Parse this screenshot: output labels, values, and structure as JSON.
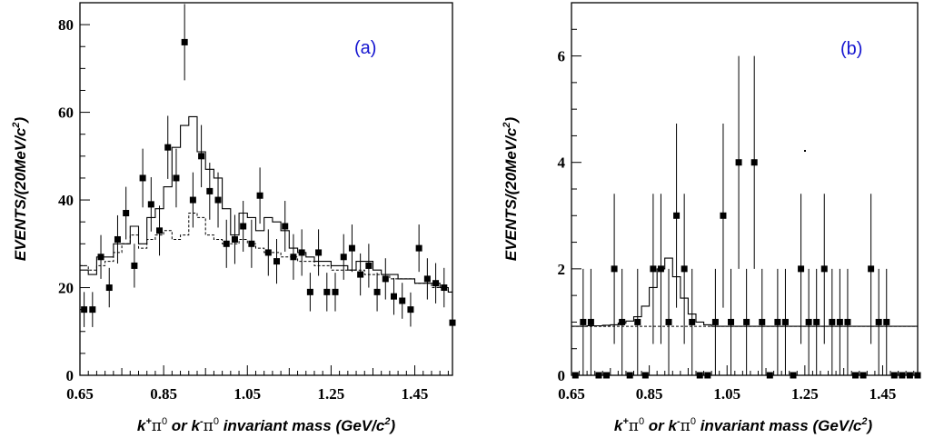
{
  "chart_data": [
    {
      "type": "scatter",
      "panel_label": "(a)",
      "ylabel": "EVENTS/(20MeV/c2)",
      "ylabel_parts": {
        "main": "EVENTS/(20MeV/c",
        "sup": "2",
        "tail": ")"
      },
      "xlabel_parts": {
        "k": "k",
        "charge1": "+",
        "pi1": "π",
        "zero1": "0",
        "or": " or ",
        "k2": "k",
        "charge2": "-",
        "pi2": "π",
        "zero2": "0",
        "rest": " invariant mass (GeV/c",
        "sup": "2",
        "close": ")"
      },
      "xlim": [
        0.67,
        1.56
      ],
      "ylim": [
        0,
        85
      ],
      "x_ticks": [
        "0.65",
        "0.85",
        "1.05",
        "1.25",
        "1.45"
      ],
      "x_tick_values": [
        0.67,
        0.87,
        1.07,
        1.27,
        1.47
      ],
      "y_ticks": [
        "0",
        "20",
        "40",
        "60",
        "80"
      ],
      "y_tick_values": [
        0,
        20,
        40,
        60,
        80
      ],
      "points": [
        {
          "x": 0.68,
          "y": 15,
          "err": 4
        },
        {
          "x": 0.7,
          "y": 15,
          "err": 4
        },
        {
          "x": 0.72,
          "y": 27,
          "err": 5
        },
        {
          "x": 0.74,
          "y": 20,
          "err": 4.5
        },
        {
          "x": 0.76,
          "y": 31,
          "err": 5.5
        },
        {
          "x": 0.78,
          "y": 37,
          "err": 6
        },
        {
          "x": 0.8,
          "y": 25,
          "err": 5
        },
        {
          "x": 0.82,
          "y": 45,
          "err": 6.7
        },
        {
          "x": 0.84,
          "y": 39,
          "err": 6.2
        },
        {
          "x": 0.86,
          "y": 33,
          "err": 5.7
        },
        {
          "x": 0.88,
          "y": 52,
          "err": 7.2
        },
        {
          "x": 0.9,
          "y": 45,
          "err": 6.7
        },
        {
          "x": 0.92,
          "y": 76,
          "err": 8.7
        },
        {
          "x": 0.94,
          "y": 40,
          "err": 6.3
        },
        {
          "x": 0.96,
          "y": 50,
          "err": 7.1
        },
        {
          "x": 0.98,
          "y": 42,
          "err": 6.5
        },
        {
          "x": 1.0,
          "y": 40,
          "err": 6.3
        },
        {
          "x": 1.02,
          "y": 30,
          "err": 5.5
        },
        {
          "x": 1.04,
          "y": 31,
          "err": 5.6
        },
        {
          "x": 1.06,
          "y": 34,
          "err": 5.8
        },
        {
          "x": 1.08,
          "y": 30,
          "err": 5.5
        },
        {
          "x": 1.1,
          "y": 41,
          "err": 6.4
        },
        {
          "x": 1.12,
          "y": 28,
          "err": 5.3
        },
        {
          "x": 1.14,
          "y": 26,
          "err": 5.1
        },
        {
          "x": 1.16,
          "y": 34,
          "err": 5.8
        },
        {
          "x": 1.18,
          "y": 27,
          "err": 5.2
        },
        {
          "x": 1.2,
          "y": 28,
          "err": 5.3
        },
        {
          "x": 1.22,
          "y": 19,
          "err": 4.4
        },
        {
          "x": 1.24,
          "y": 28,
          "err": 5.3
        },
        {
          "x": 1.26,
          "y": 19,
          "err": 4.4
        },
        {
          "x": 1.28,
          "y": 19,
          "err": 4.4
        },
        {
          "x": 1.3,
          "y": 27,
          "err": 5.2
        },
        {
          "x": 1.32,
          "y": 29,
          "err": 5.4
        },
        {
          "x": 1.34,
          "y": 23,
          "err": 4.8
        },
        {
          "x": 1.36,
          "y": 25,
          "err": 5
        },
        {
          "x": 1.38,
          "y": 19,
          "err": 4.4
        },
        {
          "x": 1.4,
          "y": 22,
          "err": 4.7
        },
        {
          "x": 1.42,
          "y": 18,
          "err": 4.2
        },
        {
          "x": 1.44,
          "y": 17,
          "err": 4.1
        },
        {
          "x": 1.46,
          "y": 15,
          "err": 3.9
        },
        {
          "x": 1.48,
          "y": 29,
          "err": 5.4
        },
        {
          "x": 1.5,
          "y": 22,
          "err": 4.7
        },
        {
          "x": 1.52,
          "y": 21,
          "err": 4.6
        },
        {
          "x": 1.54,
          "y": 20,
          "err": 4.5
        },
        {
          "x": 1.56,
          "y": 12,
          "err": 3.5
        }
      ],
      "fit_histogram": {
        "edges": [
          0.67,
          0.69,
          0.71,
          0.73,
          0.75,
          0.77,
          0.79,
          0.81,
          0.83,
          0.85,
          0.87,
          0.89,
          0.91,
          0.93,
          0.95,
          0.97,
          0.99,
          1.01,
          1.03,
          1.05,
          1.07,
          1.09,
          1.11,
          1.13,
          1.15,
          1.17,
          1.19,
          1.21,
          1.23,
          1.25,
          1.27,
          1.29,
          1.31,
          1.33,
          1.35,
          1.37,
          1.39,
          1.41,
          1.43,
          1.45,
          1.47,
          1.49,
          1.51,
          1.53,
          1.55,
          1.57
        ],
        "values": [
          24,
          23,
          27,
          27,
          30,
          30,
          34,
          30,
          36,
          38,
          43,
          52,
          57,
          59,
          51,
          47,
          45,
          38,
          32,
          37,
          36,
          33,
          36,
          35,
          33,
          29,
          28,
          27,
          26,
          26,
          25,
          25,
          24,
          26,
          26,
          24,
          23,
          23,
          22,
          22,
          21,
          21,
          21,
          20,
          19
        ]
      },
      "background_histogram": {
        "edges": [
          0.67,
          0.69,
          0.71,
          0.73,
          0.75,
          0.77,
          0.79,
          0.81,
          0.83,
          0.85,
          0.87,
          0.89,
          0.91,
          0.93,
          0.95,
          0.97,
          0.99,
          1.01,
          1.03,
          1.05,
          1.07,
          1.09,
          1.11,
          1.13,
          1.15,
          1.17,
          1.19,
          1.21,
          1.23,
          1.25,
          1.27,
          1.29,
          1.31,
          1.33,
          1.35,
          1.37,
          1.39,
          1.41,
          1.43,
          1.45,
          1.47,
          1.49,
          1.51,
          1.53,
          1.55,
          1.57
        ],
        "values": [
          25,
          24,
          25,
          26,
          28,
          30,
          32,
          29,
          31,
          32,
          33,
          31,
          32,
          37,
          36,
          32,
          31,
          30,
          30,
          31,
          30,
          29,
          28,
          28,
          27,
          27,
          26,
          26,
          25,
          25,
          24,
          24,
          24,
          24,
          23,
          23,
          23,
          22,
          22,
          22,
          21,
          21,
          20,
          20,
          19
        ]
      },
      "colors": {
        "label": "#1515d0",
        "ink": "#000000"
      }
    },
    {
      "type": "scatter",
      "panel_label": "(b)",
      "ylabel": "EVENTS/(20MeV/c2)",
      "ylabel_parts": {
        "main": "EVENTS/(20MeV/c",
        "sup": "2",
        "tail": ")"
      },
      "xlabel_parts": {
        "k": "k",
        "charge1": "+",
        "pi1": "π",
        "zero1": "0",
        "or": " or ",
        "k2": "k",
        "charge2": "-",
        "pi2": "π",
        "zero2": "0",
        "rest": " invariant  mass (GeV/c",
        "sup": "2",
        "close": ")"
      },
      "xlim": [
        0.67,
        1.56
      ],
      "ylim": [
        0,
        7
      ],
      "x_ticks": [
        "0.65",
        "0.85",
        "1.05",
        "1.25",
        "1.45"
      ],
      "x_tick_values": [
        0.67,
        0.87,
        1.07,
        1.27,
        1.47
      ],
      "y_ticks": [
        "0",
        "2",
        "4",
        "6"
      ],
      "y_tick_values": [
        0,
        2,
        4,
        6
      ],
      "points": [
        {
          "x": 0.68,
          "y": 0,
          "err": 0
        },
        {
          "x": 0.7,
          "y": 1,
          "err": 1
        },
        {
          "x": 0.72,
          "y": 1,
          "err": 1
        },
        {
          "x": 0.74,
          "y": 0,
          "err": 0
        },
        {
          "x": 0.76,
          "y": 0,
          "err": 0
        },
        {
          "x": 0.78,
          "y": 2,
          "err": 1.41
        },
        {
          "x": 0.8,
          "y": 1,
          "err": 1
        },
        {
          "x": 0.82,
          "y": 0,
          "err": 0
        },
        {
          "x": 0.84,
          "y": 1,
          "err": 1
        },
        {
          "x": 0.86,
          "y": 0,
          "err": 0
        },
        {
          "x": 0.88,
          "y": 2,
          "err": 1.41
        },
        {
          "x": 0.9,
          "y": 2,
          "err": 1.41
        },
        {
          "x": 0.92,
          "y": 1,
          "err": 1
        },
        {
          "x": 0.94,
          "y": 3,
          "err": 1.73
        },
        {
          "x": 0.96,
          "y": 2,
          "err": 1.41
        },
        {
          "x": 0.98,
          "y": 1,
          "err": 1
        },
        {
          "x": 1.0,
          "y": 0,
          "err": 0
        },
        {
          "x": 1.02,
          "y": 0,
          "err": 0
        },
        {
          "x": 1.04,
          "y": 1,
          "err": 1
        },
        {
          "x": 1.06,
          "y": 3,
          "err": 1.73
        },
        {
          "x": 1.08,
          "y": 1,
          "err": 1
        },
        {
          "x": 1.1,
          "y": 4,
          "err": 2
        },
        {
          "x": 1.12,
          "y": 1,
          "err": 1
        },
        {
          "x": 1.14,
          "y": 4,
          "err": 2
        },
        {
          "x": 1.16,
          "y": 1,
          "err": 1
        },
        {
          "x": 1.18,
          "y": 0,
          "err": 0
        },
        {
          "x": 1.2,
          "y": 1,
          "err": 1
        },
        {
          "x": 1.22,
          "y": 1,
          "err": 1
        },
        {
          "x": 1.24,
          "y": 0,
          "err": 0
        },
        {
          "x": 1.26,
          "y": 2,
          "err": 1.41
        },
        {
          "x": 1.28,
          "y": 1,
          "err": 1
        },
        {
          "x": 1.3,
          "y": 1,
          "err": 1
        },
        {
          "x": 1.32,
          "y": 2,
          "err": 1.41
        },
        {
          "x": 1.34,
          "y": 1,
          "err": 1
        },
        {
          "x": 1.36,
          "y": 1,
          "err": 1
        },
        {
          "x": 1.38,
          "y": 1,
          "err": 1
        },
        {
          "x": 1.4,
          "y": 0,
          "err": 0
        },
        {
          "x": 1.42,
          "y": 0,
          "err": 0
        },
        {
          "x": 1.44,
          "y": 2,
          "err": 1.41
        },
        {
          "x": 1.46,
          "y": 1,
          "err": 1
        },
        {
          "x": 1.48,
          "y": 1,
          "err": 1
        },
        {
          "x": 1.5,
          "y": 0,
          "err": 0
        },
        {
          "x": 1.52,
          "y": 0,
          "err": 0
        },
        {
          "x": 1.54,
          "y": 0,
          "err": 0
        },
        {
          "x": 1.56,
          "y": 0,
          "err": 0
        }
      ],
      "fit_histogram": {
        "edges": [
          0.67,
          0.69,
          0.71,
          0.73,
          0.75,
          0.77,
          0.79,
          0.81,
          0.83,
          0.85,
          0.87,
          0.89,
          0.91,
          0.93,
          0.95,
          0.97,
          0.99,
          1.01,
          1.03,
          1.57
        ],
        "values": [
          0.92,
          0.92,
          0.93,
          0.93,
          0.94,
          0.95,
          0.98,
          1.02,
          1.1,
          1.3,
          1.65,
          2.0,
          2.2,
          1.85,
          1.45,
          1.15,
          1.0,
          0.95,
          0.92
        ]
      },
      "background_line": {
        "y": 0.92
      },
      "colors": {
        "label": "#1515d0",
        "ink": "#000000"
      }
    }
  ]
}
